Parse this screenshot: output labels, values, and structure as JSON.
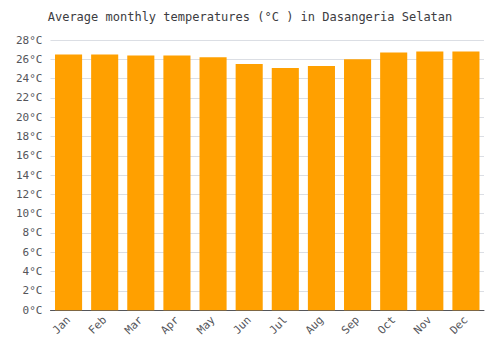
{
  "chart_data": {
    "type": "bar",
    "title": "Average monthly temperatures (°C ) in Dasangeria Selatan",
    "categories": [
      "Jan",
      "Feb",
      "Mar",
      "Apr",
      "May",
      "Jun",
      "Jul",
      "Aug",
      "Sep",
      "Oct",
      "Nov",
      "Dec"
    ],
    "values": [
      26.5,
      26.5,
      26.4,
      26.4,
      26.2,
      25.5,
      25.1,
      25.3,
      26.0,
      26.7,
      26.8,
      26.8
    ],
    "color": "#FFA000",
    "ylim": [
      0,
      28
    ],
    "yticks": [
      {
        "value": 0,
        "label": "0°C"
      },
      {
        "value": 2,
        "label": "2°C"
      },
      {
        "value": 4,
        "label": "4°C"
      },
      {
        "value": 6,
        "label": "6°C"
      },
      {
        "value": 8,
        "label": "8°C"
      },
      {
        "value": 10,
        "label": "10°C"
      },
      {
        "value": 12,
        "label": "12°C"
      },
      {
        "value": 14,
        "label": "14°C"
      },
      {
        "value": 16,
        "label": "16°C"
      },
      {
        "value": 18,
        "label": "18°C"
      },
      {
        "value": 20,
        "label": "20°C"
      },
      {
        "value": 22,
        "label": "22°C"
      },
      {
        "value": 24,
        "label": "24°C"
      },
      {
        "value": 26,
        "label": "26°C"
      },
      {
        "value": 28,
        "label": "28°C"
      }
    ],
    "grid": true
  }
}
